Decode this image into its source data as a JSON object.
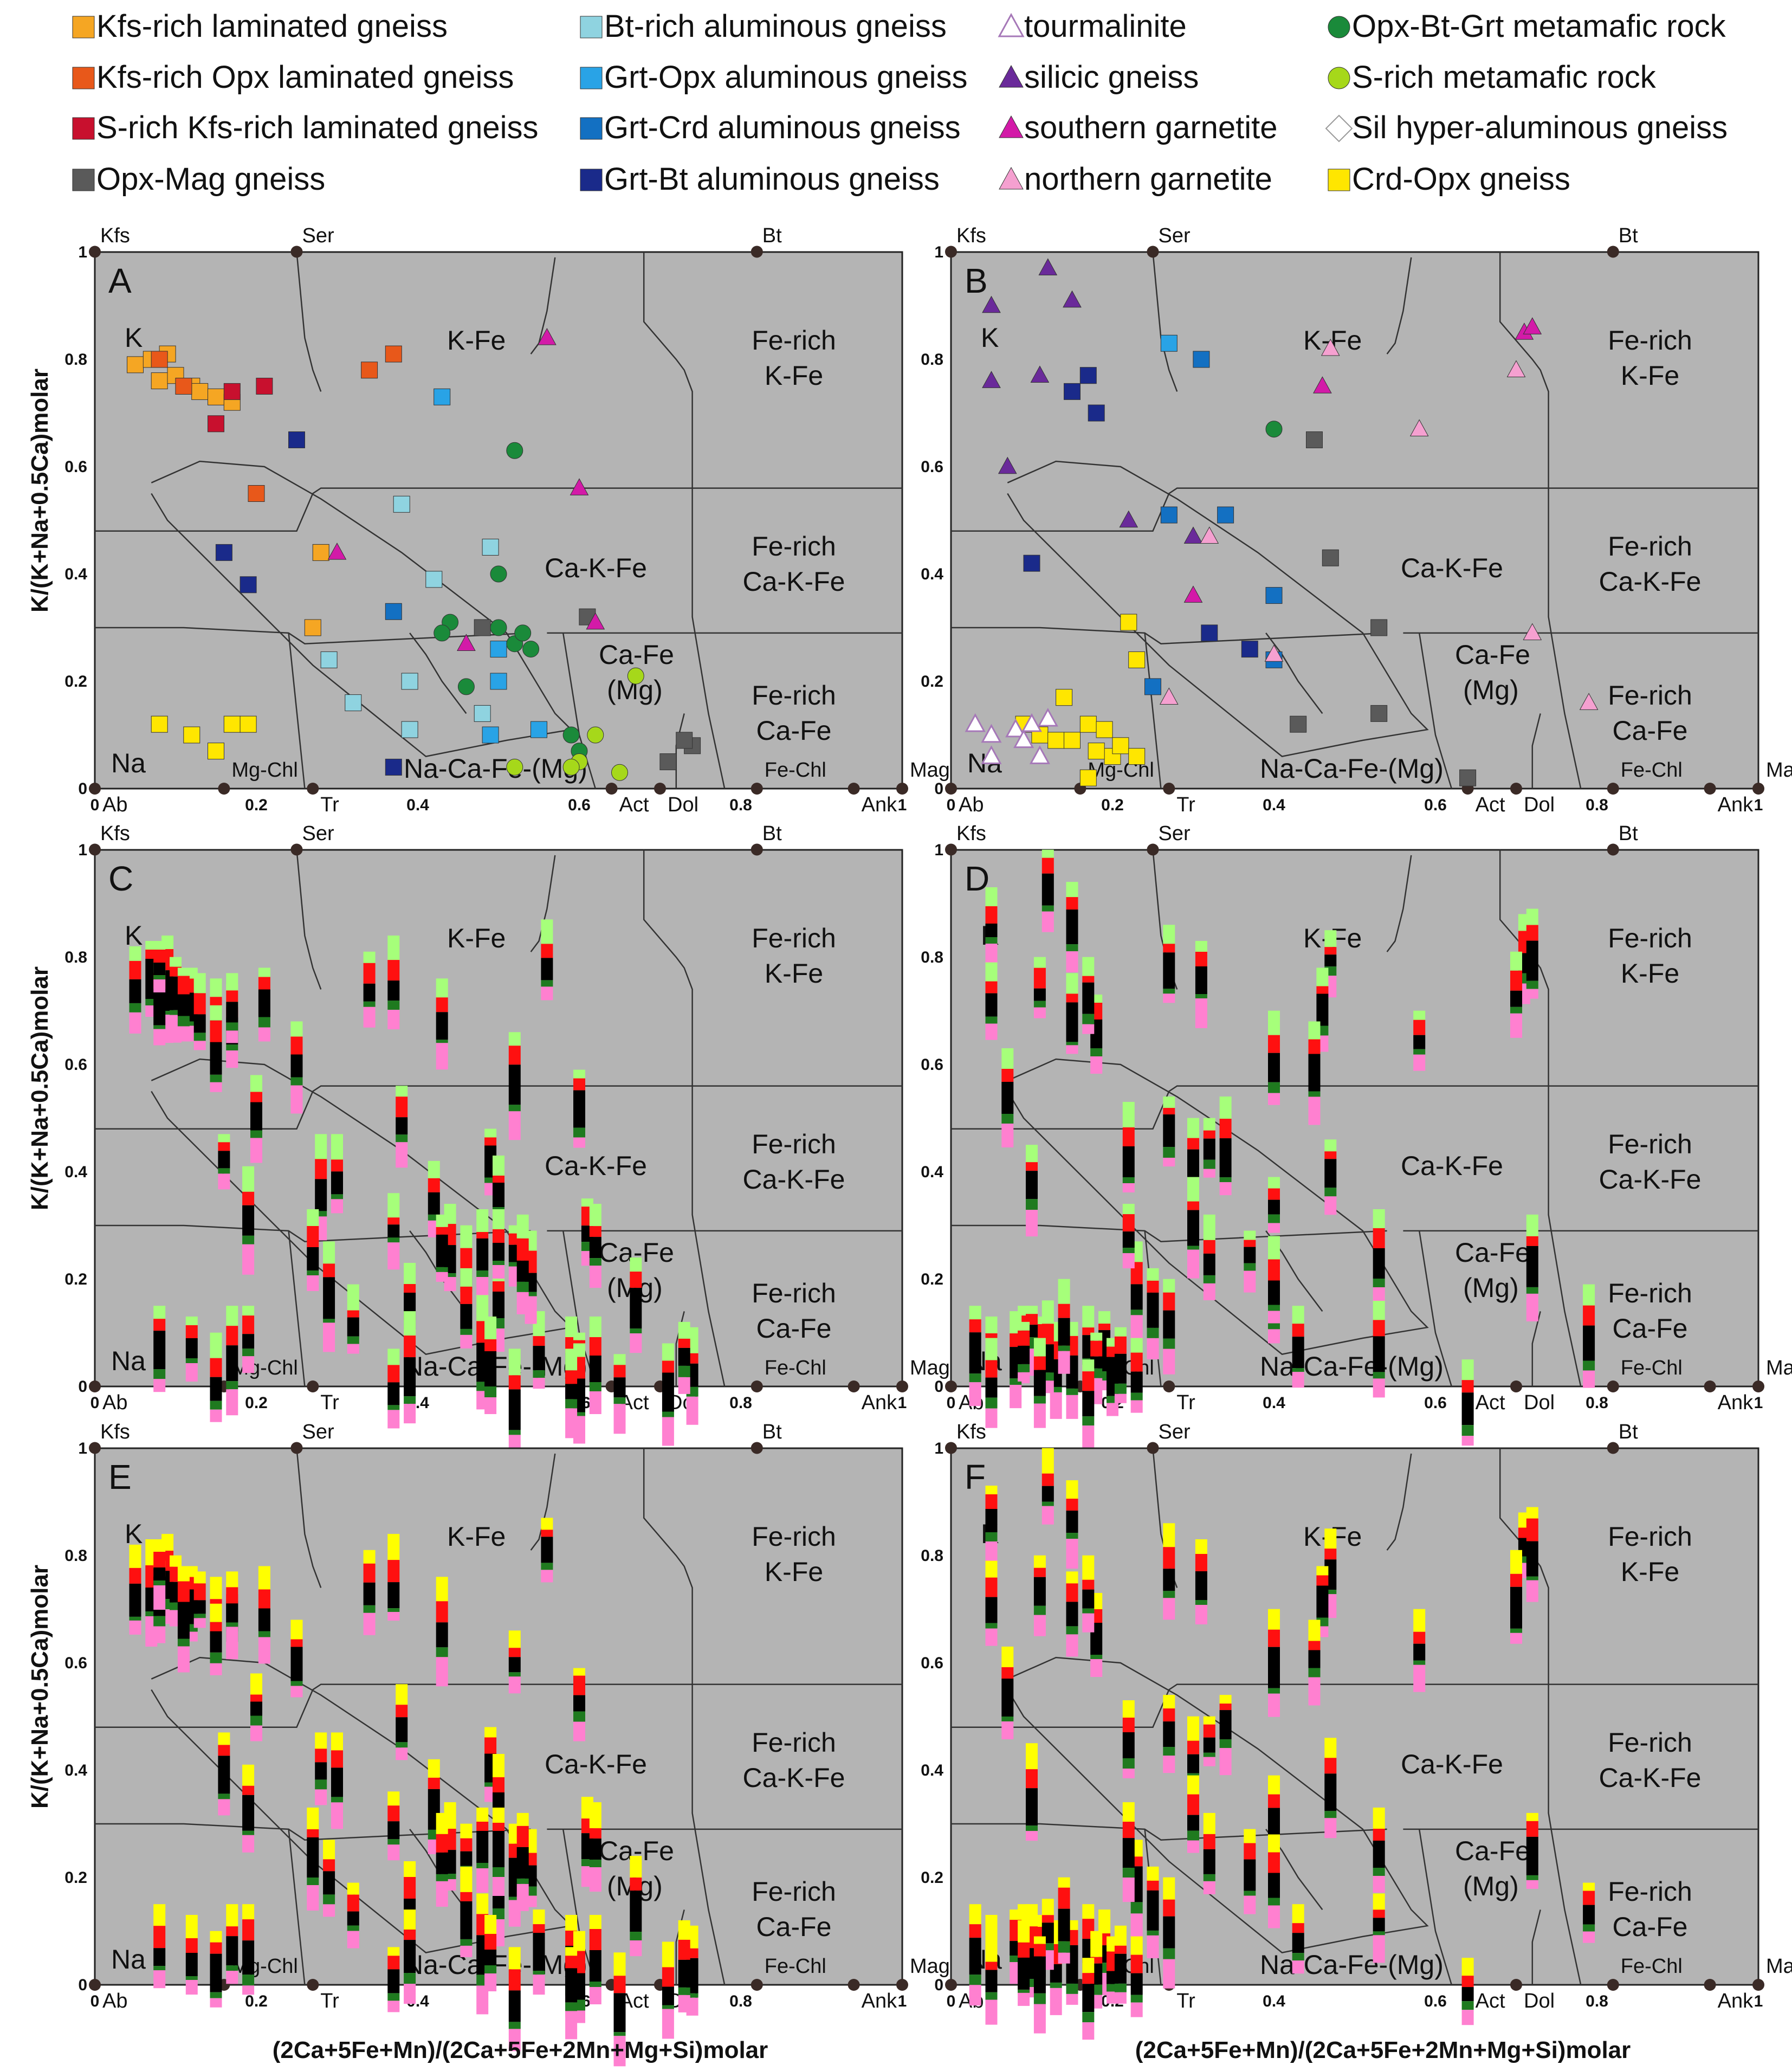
{
  "figure": {
    "y_axis_title": "K/(K+Na+0.5Ca)molar",
    "x_axis_title": "(2Ca+5Fe+Mn)/(2Ca+5Fe+2Mn+Mg+Si)molar"
  },
  "colors": {
    "plot_background": "#b4b4b4",
    "boundary": "#333333",
    "node": "#3a2a26",
    "bar_red": "#ff1010",
    "bar_black": "#000000",
    "bar_green": "#1f7a1f",
    "bar_pink": "#ff80d0",
    "bar_lightgreen": "#a6ff7a",
    "bar_yellow": "#ffff00"
  },
  "legend": [
    {
      "label": "Kfs-rich laminated gneiss",
      "marker": "square",
      "color": "#f5a623"
    },
    {
      "label": "Kfs-rich Opx laminated gneiss",
      "marker": "square",
      "color": "#e8581a"
    },
    {
      "label": "S-rich Kfs-rich laminated gneiss",
      "marker": "square",
      "color": "#c8102e"
    },
    {
      "label": "Opx-Mag gneiss",
      "marker": "square",
      "color": "#5a5a5a"
    },
    {
      "label": "Bt-rich aluminous gneiss",
      "marker": "square",
      "color": "#8fd3e0"
    },
    {
      "label": "Grt-Opx aluminous gneiss",
      "marker": "square",
      "color": "#29a3e6"
    },
    {
      "label": "Grt-Crd aluminous gneiss",
      "marker": "square",
      "color": "#1370c2"
    },
    {
      "label": "Grt-Bt aluminous gneiss",
      "marker": "square",
      "color": "#1a2a8a"
    },
    {
      "label": "tourmalinite",
      "marker": "triangle-open",
      "color": "#a678b8"
    },
    {
      "label": "silicic gneiss",
      "marker": "triangle",
      "color": "#6a2a9a"
    },
    {
      "label": "southern garnetite",
      "marker": "triangle",
      "color": "#d31aa8"
    },
    {
      "label": "northern garnetite",
      "marker": "triangle",
      "color": "#f5a0d0"
    },
    {
      "label": "Opx-Bt-Grt metamafic rock",
      "marker": "circle",
      "color": "#1a8a3a"
    },
    {
      "label": "S-rich metamafic rock",
      "marker": "circle",
      "color": "#a6d81a"
    },
    {
      "label": "Sil hyper-aluminous gneiss",
      "marker": "diamond-open",
      "color": "#ffffff"
    },
    {
      "label": "Crd-Opx gneiss",
      "marker": "square",
      "color": "#ffe600"
    }
  ],
  "panel_labels": [
    "A",
    "B",
    "C",
    "D",
    "E",
    "F"
  ],
  "axis": {
    "x_ticks": [
      "0",
      "0.2",
      "0.4",
      "0.6",
      "0.8",
      "1"
    ],
    "y_ticks": [
      "0",
      "0.2",
      "0.4",
      "0.6",
      "0.8",
      "1"
    ]
  },
  "top_nodes": [
    "Kfs",
    "Ser",
    "Bt"
  ],
  "bottom_nodes": [
    "Ab",
    "Mg-Chl",
    "Tr",
    "Act",
    "Dol",
    "Fe-Chl",
    "Ank",
    "Mag"
  ],
  "fields": {
    "K": "K",
    "Na": "Na",
    "K_Fe": "K-Fe",
    "Ca_K_Fe": "Ca-K-Fe",
    "Ca_Fe_Mg_1": "Ca-Fe",
    "Ca_Fe_Mg_2": "(Mg)",
    "Na_Ca_Fe_Mg": "Na-Ca-Fe-(Mg)",
    "Fe_rich": "Fe-rich",
    "K_Fe_short": "K-Fe",
    "Ca_K_Fe_short": "Ca-K-Fe",
    "Ca_Fe_short": "Ca-Fe"
  },
  "chart_data": [
    {
      "panel": "A",
      "type": "scatter",
      "xlim": [
        0,
        1
      ],
      "ylim": [
        0,
        1
      ],
      "xlabel": "",
      "ylabel": "K/(K+Na+0.5Ca)molar",
      "points": [
        {
          "x": 0.05,
          "y": 0.79,
          "s": 0
        },
        {
          "x": 0.07,
          "y": 0.8,
          "s": 0
        },
        {
          "x": 0.09,
          "y": 0.81,
          "s": 0
        },
        {
          "x": 0.08,
          "y": 0.76,
          "s": 0
        },
        {
          "x": 0.1,
          "y": 0.77,
          "s": 0
        },
        {
          "x": 0.12,
          "y": 0.75,
          "s": 0
        },
        {
          "x": 0.13,
          "y": 0.74,
          "s": 0
        },
        {
          "x": 0.15,
          "y": 0.73,
          "s": 0
        },
        {
          "x": 0.17,
          "y": 0.72,
          "s": 0
        },
        {
          "x": 0.28,
          "y": 0.44,
          "s": 0
        },
        {
          "x": 0.27,
          "y": 0.3,
          "s": 0
        },
        {
          "x": 0.08,
          "y": 0.12,
          "s": 15
        },
        {
          "x": 0.12,
          "y": 0.1,
          "s": 15
        },
        {
          "x": 0.15,
          "y": 0.07,
          "s": 15
        },
        {
          "x": 0.17,
          "y": 0.12,
          "s": 15
        },
        {
          "x": 0.19,
          "y": 0.12,
          "s": 15
        },
        {
          "x": 0.08,
          "y": 0.8,
          "s": 1
        },
        {
          "x": 0.11,
          "y": 0.75,
          "s": 1
        },
        {
          "x": 0.34,
          "y": 0.78,
          "s": 1
        },
        {
          "x": 0.37,
          "y": 0.81,
          "s": 1
        },
        {
          "x": 0.2,
          "y": 0.55,
          "s": 1
        },
        {
          "x": 0.15,
          "y": 0.68,
          "s": 2
        },
        {
          "x": 0.17,
          "y": 0.74,
          "s": 2
        },
        {
          "x": 0.21,
          "y": 0.75,
          "s": 2
        },
        {
          "x": 0.48,
          "y": 0.3,
          "s": 3
        },
        {
          "x": 0.61,
          "y": 0.32,
          "s": 3
        },
        {
          "x": 0.74,
          "y": 0.08,
          "s": 3
        },
        {
          "x": 0.73,
          "y": 0.09,
          "s": 3
        },
        {
          "x": 0.71,
          "y": 0.05,
          "s": 3
        },
        {
          "x": 0.38,
          "y": 0.53,
          "s": 4
        },
        {
          "x": 0.42,
          "y": 0.39,
          "s": 4
        },
        {
          "x": 0.49,
          "y": 0.45,
          "s": 4
        },
        {
          "x": 0.29,
          "y": 0.24,
          "s": 4
        },
        {
          "x": 0.32,
          "y": 0.16,
          "s": 4
        },
        {
          "x": 0.39,
          "y": 0.2,
          "s": 4
        },
        {
          "x": 0.39,
          "y": 0.11,
          "s": 4
        },
        {
          "x": 0.48,
          "y": 0.14,
          "s": 4
        },
        {
          "x": 0.43,
          "y": 0.73,
          "s": 5
        },
        {
          "x": 0.5,
          "y": 0.26,
          "s": 5
        },
        {
          "x": 0.5,
          "y": 0.2,
          "s": 5
        },
        {
          "x": 0.49,
          "y": 0.1,
          "s": 5
        },
        {
          "x": 0.55,
          "y": 0.11,
          "s": 5
        },
        {
          "x": 0.37,
          "y": 0.33,
          "s": 6
        },
        {
          "x": 0.25,
          "y": 0.65,
          "s": 7
        },
        {
          "x": 0.16,
          "y": 0.44,
          "s": 7
        },
        {
          "x": 0.19,
          "y": 0.38,
          "s": 7
        },
        {
          "x": 0.37,
          "y": 0.04,
          "s": 7
        },
        {
          "x": 0.3,
          "y": 0.44,
          "s": 10
        },
        {
          "x": 0.56,
          "y": 0.84,
          "s": 10
        },
        {
          "x": 0.6,
          "y": 0.56,
          "s": 10
        },
        {
          "x": 0.46,
          "y": 0.27,
          "s": 10
        },
        {
          "x": 0.62,
          "y": 0.31,
          "s": 10
        },
        {
          "x": 0.52,
          "y": 0.63,
          "s": 12
        },
        {
          "x": 0.5,
          "y": 0.4,
          "s": 12
        },
        {
          "x": 0.44,
          "y": 0.31,
          "s": 12
        },
        {
          "x": 0.43,
          "y": 0.29,
          "s": 12
        },
        {
          "x": 0.46,
          "y": 0.19,
          "s": 12
        },
        {
          "x": 0.5,
          "y": 0.3,
          "s": 12
        },
        {
          "x": 0.52,
          "y": 0.27,
          "s": 12
        },
        {
          "x": 0.54,
          "y": 0.26,
          "s": 12
        },
        {
          "x": 0.53,
          "y": 0.29,
          "s": 12
        },
        {
          "x": 0.59,
          "y": 0.1,
          "s": 12
        },
        {
          "x": 0.6,
          "y": 0.07,
          "s": 12
        },
        {
          "x": 0.67,
          "y": 0.21,
          "s": 13
        },
        {
          "x": 0.6,
          "y": 0.05,
          "s": 13
        },
        {
          "x": 0.62,
          "y": 0.1,
          "s": 13
        },
        {
          "x": 0.65,
          "y": 0.03,
          "s": 13
        },
        {
          "x": 0.52,
          "y": 0.04,
          "s": 13
        },
        {
          "x": 0.59,
          "y": 0.04,
          "s": 13
        }
      ]
    },
    {
      "panel": "B",
      "type": "scatter",
      "xlim": [
        0,
        1
      ],
      "ylim": [
        0,
        1
      ],
      "xlabel": "",
      "ylabel": "",
      "points": [
        {
          "x": 0.05,
          "y": 0.9,
          "s": 9
        },
        {
          "x": 0.12,
          "y": 0.97,
          "s": 9
        },
        {
          "x": 0.15,
          "y": 0.91,
          "s": 9
        },
        {
          "x": 0.05,
          "y": 0.76,
          "s": 9
        },
        {
          "x": 0.11,
          "y": 0.77,
          "s": 9
        },
        {
          "x": 0.07,
          "y": 0.6,
          "s": 9
        },
        {
          "x": 0.22,
          "y": 0.5,
          "s": 9
        },
        {
          "x": 0.3,
          "y": 0.47,
          "s": 9
        },
        {
          "x": 0.18,
          "y": 0.7,
          "s": 7
        },
        {
          "x": 0.15,
          "y": 0.74,
          "s": 7
        },
        {
          "x": 0.17,
          "y": 0.77,
          "s": 7
        },
        {
          "x": 0.1,
          "y": 0.42,
          "s": 7
        },
        {
          "x": 0.32,
          "y": 0.29,
          "s": 7
        },
        {
          "x": 0.37,
          "y": 0.26,
          "s": 7
        },
        {
          "x": 0.27,
          "y": 0.51,
          "s": 6
        },
        {
          "x": 0.34,
          "y": 0.51,
          "s": 6
        },
        {
          "x": 0.31,
          "y": 0.8,
          "s": 6
        },
        {
          "x": 0.4,
          "y": 0.36,
          "s": 6
        },
        {
          "x": 0.25,
          "y": 0.19,
          "s": 6
        },
        {
          "x": 0.4,
          "y": 0.24,
          "s": 6
        },
        {
          "x": 0.27,
          "y": 0.83,
          "s": 5
        },
        {
          "x": 0.47,
          "y": 0.82,
          "s": 11
        },
        {
          "x": 0.71,
          "y": 0.85,
          "s": 10
        },
        {
          "x": 0.72,
          "y": 0.86,
          "s": 10
        },
        {
          "x": 0.46,
          "y": 0.75,
          "s": 10
        },
        {
          "x": 0.3,
          "y": 0.36,
          "s": 10
        },
        {
          "x": 0.4,
          "y": 0.67,
          "s": 12
        },
        {
          "x": 0.45,
          "y": 0.65,
          "s": 3
        },
        {
          "x": 0.47,
          "y": 0.43,
          "s": 3
        },
        {
          "x": 0.53,
          "y": 0.14,
          "s": 3
        },
        {
          "x": 0.43,
          "y": 0.12,
          "s": 3
        },
        {
          "x": 0.53,
          "y": 0.3,
          "s": 3
        },
        {
          "x": 0.64,
          "y": 0.02,
          "s": 3
        },
        {
          "x": 0.7,
          "y": 0.78,
          "s": 11
        },
        {
          "x": 0.58,
          "y": 0.67,
          "s": 11
        },
        {
          "x": 0.32,
          "y": 0.47,
          "s": 11
        },
        {
          "x": 0.4,
          "y": 0.25,
          "s": 11
        },
        {
          "x": 0.72,
          "y": 0.29,
          "s": 11
        },
        {
          "x": 0.79,
          "y": 0.16,
          "s": 11
        },
        {
          "x": 0.27,
          "y": 0.17,
          "s": 11
        },
        {
          "x": 0.23,
          "y": 0.24,
          "s": 15
        },
        {
          "x": 0.22,
          "y": 0.31,
          "s": 15
        },
        {
          "x": 0.09,
          "y": 0.12,
          "s": 15
        },
        {
          "x": 0.11,
          "y": 0.1,
          "s": 15
        },
        {
          "x": 0.13,
          "y": 0.09,
          "s": 15
        },
        {
          "x": 0.15,
          "y": 0.09,
          "s": 15
        },
        {
          "x": 0.17,
          "y": 0.12,
          "s": 15
        },
        {
          "x": 0.19,
          "y": 0.11,
          "s": 15
        },
        {
          "x": 0.2,
          "y": 0.06,
          "s": 15
        },
        {
          "x": 0.18,
          "y": 0.07,
          "s": 15
        },
        {
          "x": 0.21,
          "y": 0.08,
          "s": 15
        },
        {
          "x": 0.23,
          "y": 0.06,
          "s": 15
        },
        {
          "x": 0.14,
          "y": 0.17,
          "s": 15
        },
        {
          "x": 0.17,
          "y": 0.02,
          "s": 15
        },
        {
          "x": 0.03,
          "y": 0.12,
          "s": 8
        },
        {
          "x": 0.05,
          "y": 0.1,
          "s": 8
        },
        {
          "x": 0.08,
          "y": 0.11,
          "s": 8
        },
        {
          "x": 0.1,
          "y": 0.12,
          "s": 8
        },
        {
          "x": 0.12,
          "y": 0.13,
          "s": 8
        },
        {
          "x": 0.05,
          "y": 0.06,
          "s": 8
        },
        {
          "x": 0.11,
          "y": 0.06,
          "s": 8
        },
        {
          "x": 0.09,
          "y": 0.09,
          "s": 8
        }
      ]
    },
    {
      "panel": "C",
      "type": "stacked-bar-glyphs",
      "xlim": [
        0,
        1
      ],
      "ylim": [
        0,
        1
      ],
      "xlabel": "",
      "ylabel": "K/(K+Na+0.5Ca)molar",
      "segments": [
        "lightgreen",
        "red",
        "black",
        "green",
        "pink"
      ]
    },
    {
      "panel": "D",
      "type": "stacked-bar-glyphs",
      "xlim": [
        0,
        1
      ],
      "ylim": [
        0,
        1
      ],
      "xlabel": "",
      "ylabel": "",
      "segments": [
        "lightgreen",
        "red",
        "black",
        "green",
        "pink"
      ]
    },
    {
      "panel": "E",
      "type": "stacked-bar-glyphs",
      "xlim": [
        0,
        1
      ],
      "ylim": [
        0,
        1
      ],
      "xlabel": "(2Ca+5Fe+Mn)/(2Ca+5Fe+2Mn+Mg+Si)molar",
      "ylabel": "K/(K+Na+0.5Ca)molar",
      "segments": [
        "yellow",
        "red",
        "black",
        "green",
        "pink"
      ]
    },
    {
      "panel": "F",
      "type": "stacked-bar-glyphs",
      "xlim": [
        0,
        1
      ],
      "ylim": [
        0,
        1
      ],
      "xlabel": "(2Ca+5Fe+Mn)/(2Ca+5Fe+2Mn+Mg+Si)molar",
      "ylabel": "",
      "segments": [
        "yellow",
        "red",
        "black",
        "green",
        "pink"
      ]
    }
  ]
}
